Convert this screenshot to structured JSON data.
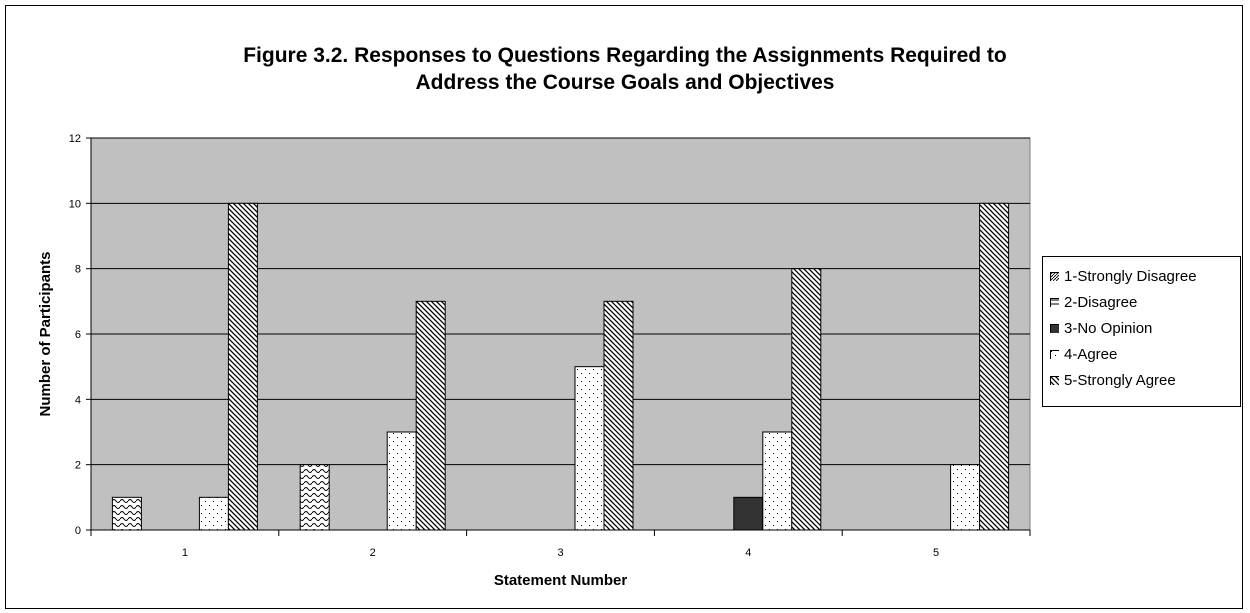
{
  "chart_data": {
    "type": "bar",
    "title_lines": [
      "Figure 3.2.  Responses to Questions Regarding the Assignments Required to",
      "Address the Course Goals and Objectives"
    ],
    "xlabel": "Statement Number",
    "ylabel": "Number of Participants",
    "categories": [
      "1",
      "2",
      "3",
      "4",
      "5"
    ],
    "ylim": [
      0,
      12
    ],
    "yticks": [
      0,
      2,
      4,
      6,
      8,
      10,
      12
    ],
    "grid": true,
    "plot_background": "#c0c0c0",
    "legend_position": "right",
    "series": [
      {
        "name": "1-Strongly Disagree",
        "values": [
          1,
          2,
          0,
          0,
          0
        ],
        "pattern": "wave"
      },
      {
        "name": "2-Disagree",
        "values": [
          0,
          0,
          0,
          0,
          0
        ],
        "pattern": "hline"
      },
      {
        "name": "3-No Opinion",
        "values": [
          0,
          0,
          0,
          1,
          0
        ],
        "pattern": "solid"
      },
      {
        "name": "4-Agree",
        "values": [
          1,
          3,
          5,
          3,
          2
        ],
        "pattern": "dots"
      },
      {
        "name": "5-Strongly Agree",
        "values": [
          10,
          7,
          7,
          8,
          10
        ],
        "pattern": "diag"
      }
    ]
  }
}
